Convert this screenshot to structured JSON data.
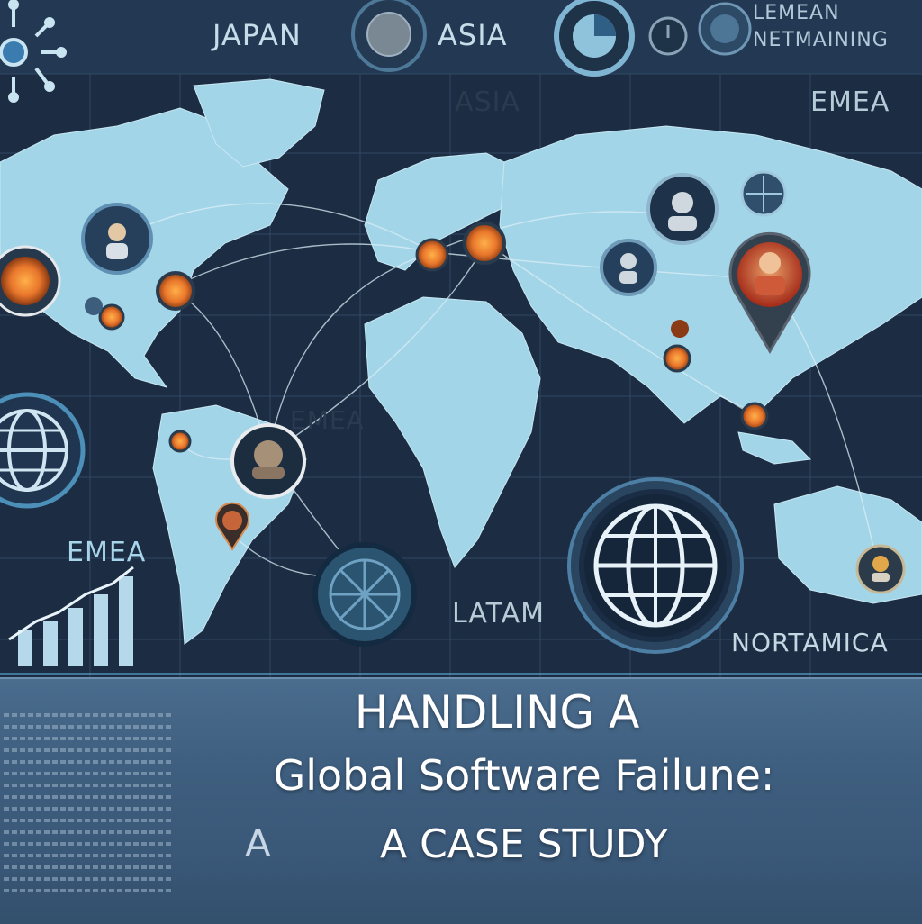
{
  "labels": {
    "japan": "JAPAN",
    "asia_top": "ASIA",
    "asia_map": "ASIA",
    "emea_top_right": "EMEA",
    "emea_center": "EMEA",
    "emea_left": "EMEA",
    "latam": "LATAM",
    "nortamica": "NORTAMICA",
    "top_right_line1": "LEMEAN",
    "top_right_line2": "NETMAINING"
  },
  "title": {
    "line1": "HANDLING A",
    "line2": "Global Software Failune:",
    "line3": "A CASE STUDY",
    "line3_prefix": "A"
  },
  "colors": {
    "background": "#1a2a3f",
    "land": "#9fd3e6",
    "grid": "#33506e",
    "marker_orange": "#e8762b",
    "marker_red": "#c83a22",
    "banner": "#3f5f80",
    "accent_line": "#5aa9d6"
  },
  "icons": [
    "network-hub-icon",
    "globe-icon",
    "pie-chart-icon",
    "power-icon",
    "bar-chart-icon",
    "person-marker-icon",
    "pin-marker-icon"
  ]
}
